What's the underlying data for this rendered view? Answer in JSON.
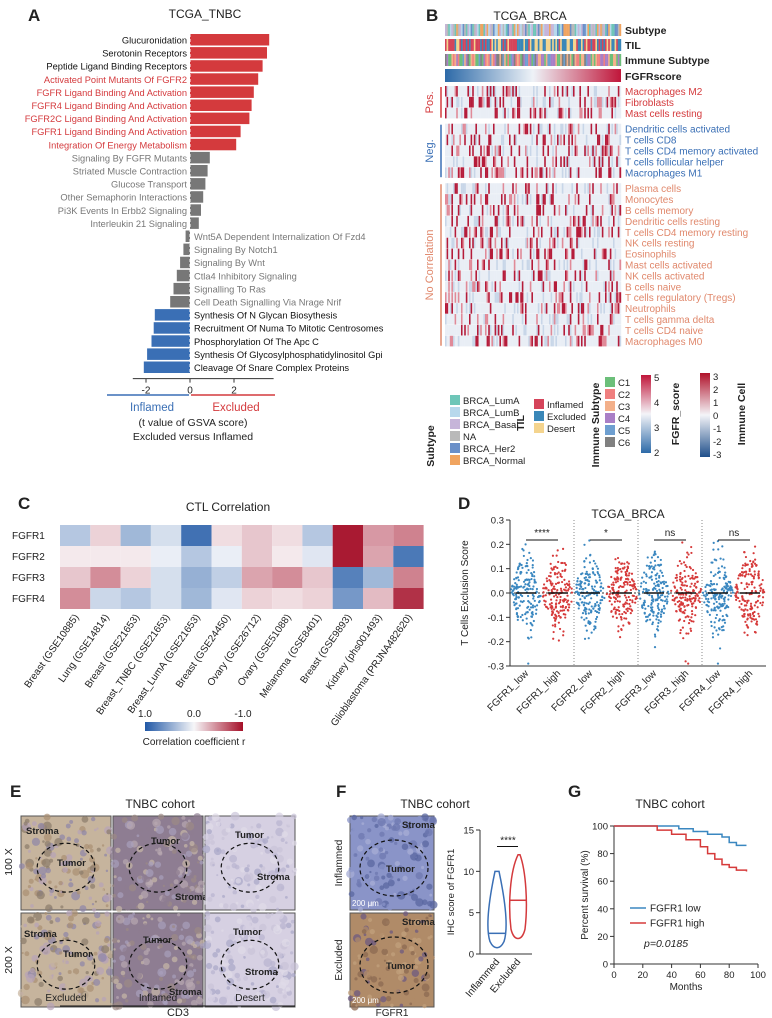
{
  "panel_labels": {
    "a": "A",
    "b": "B",
    "c": "C",
    "d": "D",
    "e": "E",
    "f": "F",
    "g": "G"
  },
  "colors": {
    "red": "#d43a3d",
    "blue": "#3a6fb5",
    "grey": "#777777",
    "hm_red": "#b0122a",
    "hm_blue": "#2b5fa6",
    "orange": "#e0886c"
  },
  "chart_data": [
    {
      "id": "A",
      "type": "bar",
      "orientation": "horizontal",
      "title": "TCGA_TNBC",
      "categories": [
        "Glucuronidation",
        "Serotonin Receptors",
        "Peptide Ligand Binding Receptors",
        "Activated Point Mutants Of  FGFR2",
        "FGFR Ligand Binding And Activation",
        "FGFR4 Ligand Binding And Activation",
        "FGFR2C Ligand Binding And Activation",
        "FGFR1 Ligand Binding And Activation",
        "Integration Of Energy Metabolism",
        "Signaling By  FGFR Mutants",
        "Striated Muscle Contraction",
        "Glucose Transport",
        "Other Semaphorin Interactions",
        "Pi3K Events In Erbb2 Signaling",
        "Interleukin 21 Signaling",
        "Wnt5A Dependent Internalization Of Fzd4",
        "Signaling By Notch1",
        "Signaling By Wnt",
        "Ctla4 Inhibitory Signaling",
        "Signalling To Ras",
        "Cell Death Signalling Via Nrage Nrif",
        "Synthesis Of  N Glycan Biosythesis",
        "Recruitment Of Numa To Mitotic Centrosomes",
        "Phosphorylation Of The Apc C",
        "Synthesis Of Glycosylphosphatidylinositol Gpi",
        "Cleavage Of Snare Complex Proteins"
      ],
      "values": [
        3.6,
        3.5,
        3.3,
        3.1,
        2.9,
        2.8,
        2.7,
        2.3,
        2.1,
        0.9,
        0.8,
        0.7,
        0.6,
        0.5,
        0.4,
        -0.2,
        -0.3,
        -0.45,
        -0.6,
        -0.75,
        -0.9,
        -1.6,
        -1.65,
        -1.75,
        -1.95,
        -2.1
      ],
      "label_colors": [
        "black",
        "black",
        "black",
        "red",
        "red",
        "red",
        "red",
        "red",
        "red",
        "grey",
        "grey",
        "grey",
        "grey",
        "grey",
        "grey",
        "grey",
        "grey",
        "grey",
        "grey",
        "grey",
        "grey",
        "black",
        "black",
        "black",
        "black",
        "black"
      ],
      "bar_colors": [
        "red",
        "red",
        "red",
        "red",
        "red",
        "red",
        "red",
        "red",
        "red",
        "grey",
        "grey",
        "grey",
        "grey",
        "grey",
        "grey",
        "grey",
        "grey",
        "grey",
        "grey",
        "grey",
        "grey",
        "blue",
        "blue",
        "blue",
        "blue",
        "blue"
      ],
      "xlim": [
        -2.6,
        3.8
      ],
      "xticks": [
        "-2",
        "0",
        "2"
      ],
      "xlabel_left": "Inflamed",
      "xlabel_right": "Excluded",
      "xlabel": "(t value of GSVA score)",
      "xlabel2": "Excluded versus Inflamed"
    },
    {
      "id": "B",
      "type": "heatmap",
      "title": "TCGA_BRCA",
      "annotation_rows": [
        "Subtype",
        "TIL",
        "Immune Subtype",
        "FGFRscore"
      ],
      "groups": [
        {
          "name": "Pos.",
          "rows": [
            "Macrophages M2",
            "Fibroblasts",
            "Mast cells resting"
          ]
        },
        {
          "name": "Neg.",
          "rows": [
            "Dendritic cells activated",
            "T cells CD8",
            "T cells CD4 memory activated",
            "T cells follicular helper",
            "Macrophages M1"
          ]
        },
        {
          "name": "No Correlation",
          "rows": [
            "Plasma cells",
            "Monocytes",
            "B cells memory",
            "Dendritic cells resting",
            "T cells CD4 memory resting",
            "NK cells resting",
            "Eosinophils",
            "Mast cells activated",
            "NK cells activated",
            "B cells naive",
            "T cells regulatory (Tregs)",
            "Neutrophils",
            "T cells gamma delta",
            "T cells CD4 naive",
            "Macrophages M0"
          ]
        }
      ],
      "legend_subtype_title": "Subtype",
      "legend_subtype": [
        "BRCA_LumA",
        "BRCA_LumB",
        "BRCA_Basal",
        "NA",
        "BRCA_Her2",
        "BRCA_Normal"
      ],
      "legend_subtype_colors": [
        "#6ec6b8",
        "#b7d8ec",
        "#c6b5d9",
        "#b9b9b9",
        "#6a8fc8",
        "#f0a460"
      ],
      "legend_til_title": "TIL",
      "legend_til": [
        "Inflamed",
        "Excluded",
        "Desert"
      ],
      "legend_til_colors": [
        "#d5445a",
        "#3a87b8",
        "#f4d48e"
      ],
      "legend_immune_title": "Immune Subtype",
      "legend_immune": [
        "C1",
        "C2",
        "C3",
        "C4",
        "C5",
        "C6"
      ],
      "legend_immune_colors": [
        "#6cbf7a",
        "#f08080",
        "#f3b08a",
        "#a97fc6",
        "#6e9fd0",
        "#808080"
      ],
      "fgfr_score_title": "FGFR_score",
      "fgfr_score_range": [
        "5",
        "4",
        "3",
        "2"
      ],
      "immune_cell_title": "Immune Cell",
      "immune_cell_range": [
        "3",
        "2",
        "1",
        "0",
        "-1",
        "-2",
        "-3"
      ]
    },
    {
      "id": "C",
      "type": "heatmap",
      "title": "CTL Correlation",
      "rows": [
        "FGFR1",
        "FGFR2",
        "FGFR3",
        "FGFR4"
      ],
      "columns": [
        "Breast (GSE10885)",
        "Lung (GSE14814)",
        "Breast (GSE21653)",
        "Breast_TNBC (GSE21653)",
        "Breast_LumA (GSE21653)",
        "Breast (GSE24450)",
        "Ovary (GSE26712)",
        "Ovary (GSE51088)",
        "Melanoma (GSE8401)",
        "Breast (GSE9893)",
        "Kidney (phs001493)",
        "Glioblastoma (PRJNA482620)"
      ],
      "values": [
        [
          0.3,
          -0.15,
          0.4,
          0.15,
          0.85,
          -0.1,
          -0.2,
          -0.1,
          0.3,
          -0.95,
          -0.4,
          -0.5
        ],
        [
          -0.05,
          -0.05,
          -0.05,
          0.05,
          0.3,
          0.05,
          -0.2,
          -0.05,
          0.1,
          -0.95,
          -0.35,
          0.8
        ],
        [
          -0.2,
          -0.45,
          -0.15,
          0.15,
          0.45,
          0.25,
          -0.35,
          -0.45,
          -0.2,
          0.75,
          0.4,
          -0.5
        ],
        [
          -0.45,
          0.2,
          0.3,
          0.15,
          0.4,
          0.1,
          -0.15,
          -0.1,
          -0.15,
          0.6,
          -0.25,
          -0.85
        ]
      ],
      "colorbar_ticks": [
        "1.0",
        "0.0",
        "-1.0"
      ],
      "colorbar_label": "Correlation coefficient r"
    },
    {
      "id": "D",
      "type": "scatter",
      "subtype": "strip",
      "title": "TCGA_BRCA",
      "categories": [
        "FGFR1_low",
        "FGFR1_high",
        "FGFR2_low",
        "FGFR2_high",
        "FGFR3_low",
        "FGFR3_high",
        "FGFR4_low",
        "FGFR4_high"
      ],
      "ylabel": "T Cells Exclusion Score",
      "ylim": [
        -0.3,
        0.3
      ],
      "yticks": [
        "0.3",
        "0.2",
        "0.1",
        "0.0",
        "-0.1",
        "-0.2",
        "-0.3"
      ],
      "significance": [
        "****",
        "*",
        "ns",
        "ns"
      ],
      "series": [
        {
          "name": "low",
          "color": "#3a87c0"
        },
        {
          "name": "high",
          "color": "#d63a3a"
        }
      ]
    },
    {
      "id": "F",
      "type": "violin",
      "title": "TNBC cohort",
      "categories": [
        "Inflammed",
        "Excluded"
      ],
      "ylabel": "IHC score of FGFR1",
      "ylim": [
        0,
        15
      ],
      "yticks": [
        "15",
        "10",
        "5",
        "0"
      ],
      "significance": "****"
    },
    {
      "id": "G",
      "type": "line",
      "subtype": "survival",
      "title": "TNBC cohort",
      "xlabel": "Months",
      "ylabel": "Percent survival (%)",
      "xlim": [
        0,
        100
      ],
      "ylim": [
        0,
        100
      ],
      "xticks": [
        "0",
        "20",
        "40",
        "60",
        "80",
        "100"
      ],
      "yticks": [
        "100",
        "80",
        "60",
        "40",
        "20",
        "0"
      ],
      "series": [
        {
          "name": "FGFR1 low",
          "color": "#3a87c0",
          "x": [
            0,
            30,
            45,
            55,
            65,
            75,
            80,
            85,
            92
          ],
          "y": [
            100,
            100,
            98,
            96,
            94,
            92,
            88,
            86,
            86
          ]
        },
        {
          "name": "FGFR1 high",
          "color": "#d63a3a",
          "x": [
            0,
            20,
            30,
            40,
            50,
            60,
            65,
            70,
            75,
            80,
            85,
            92
          ],
          "y": [
            100,
            100,
            97,
            94,
            90,
            85,
            80,
            76,
            72,
            70,
            68,
            67
          ]
        }
      ],
      "pvalue_label": "p=0.0185"
    }
  ],
  "panel_e": {
    "title": "TNBC cohort",
    "row_labels": [
      "100 X",
      "200 X"
    ],
    "col_labels": [
      "Excluded",
      "Inflamed",
      "Desert"
    ],
    "marker": "CD3",
    "img_labels": {
      "r0c0_stroma": "Stroma",
      "r0c0_tumor": "Tumor",
      "r0c1_tumor": "Tumor",
      "r0c1_stroma": "Stroma",
      "r0c2_tumor": "Tumor",
      "r0c2_stroma": "Stroma",
      "r1c0_stroma": "Stroma",
      "r1c0_tumor": "Tumor",
      "r1c1_tumor": "Tumor",
      "r1c1_stroma": "Stroma",
      "r1c2_tumor": "Tumor",
      "r1c2_stroma": "Stroma"
    }
  },
  "panel_f": {
    "row_labels": [
      "Inflammed",
      "Excluded"
    ],
    "marker": "FGFR1",
    "img_labels": {
      "top_stroma": "Stroma",
      "top_tumor": "Tumor",
      "bot_stroma": "Stroma",
      "bot_tumor": "Tumor",
      "scale": "200 μm"
    }
  }
}
